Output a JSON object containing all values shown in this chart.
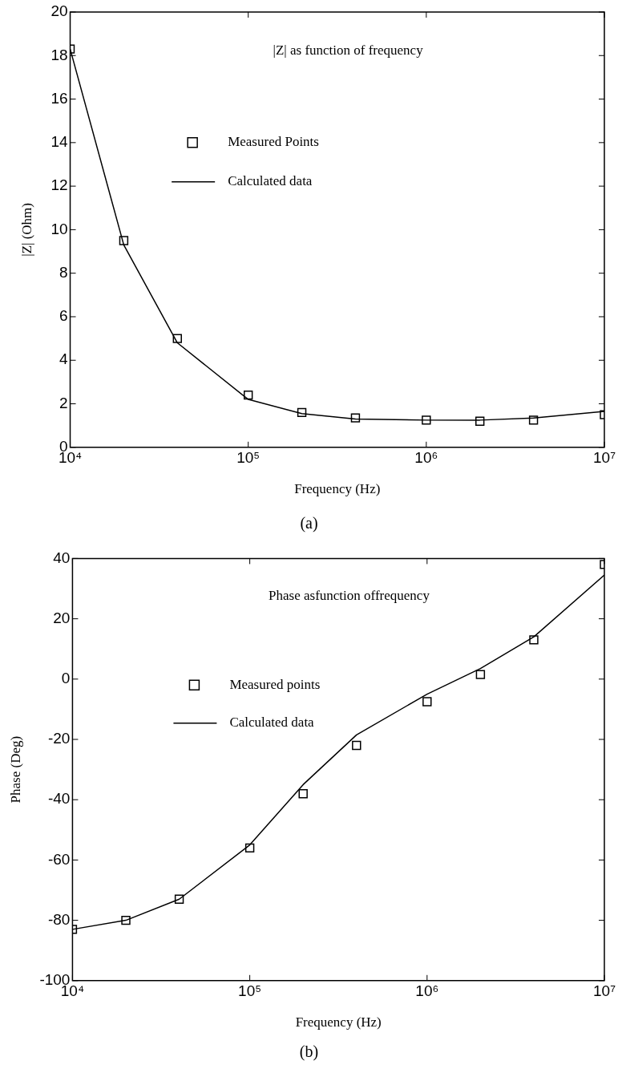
{
  "chart_data": [
    {
      "type": "line",
      "title": "|Z| as function of frequency",
      "xlabel": "Frequency (Hz)",
      "ylabel": "|Z| (Ohm)",
      "annotations": [
        "(a)"
      ],
      "x": [
        10000,
        20000,
        40000,
        100000,
        200000,
        400000,
        1000000,
        2000000,
        4000000,
        10000000
      ],
      "series": [
        {
          "name": "Measured Points",
          "type": "scatter",
          "marker": "square",
          "color": "#000000",
          "values": [
            18.3,
            9.5,
            5.0,
            2.4,
            1.6,
            1.35,
            1.25,
            1.2,
            1.25,
            1.5
          ]
        },
        {
          "name": "Calculated data",
          "marker": "none",
          "color": "#000000",
          "values": [
            18.3,
            9.3,
            4.8,
            2.2,
            1.55,
            1.3,
            1.25,
            1.25,
            1.35,
            1.65
          ]
        }
      ],
      "log": "x",
      "xlim": [
        10000,
        10000000
      ],
      "xticks": [
        {
          "value": 10000,
          "label": "10⁴"
        },
        {
          "value": 100000,
          "label": "10⁵"
        },
        {
          "value": 1000000,
          "label": "10⁶"
        },
        {
          "value": 10000000,
          "label": "10⁷"
        }
      ],
      "ylim": [
        0,
        20
      ],
      "yticks": [
        0,
        2,
        4,
        6,
        8,
        10,
        12,
        14,
        16,
        18,
        20
      ],
      "grid": false,
      "legend": "top left"
    },
    {
      "type": "line",
      "title": "Phase asfunction offrequency",
      "xlabel": "Frequency (Hz)",
      "ylabel": "Phase (Deg)",
      "annotations": [
        "(b)"
      ],
      "x": [
        10000,
        20000,
        40000,
        100000,
        200000,
        400000,
        1000000,
        2000000,
        4000000,
        10000000
      ],
      "series": [
        {
          "name": "Measured points",
          "type": "scatter",
          "marker": "square",
          "color": "#000000",
          "values": [
            -83,
            -80,
            -73,
            -56,
            -38,
            -22,
            -7.5,
            1.5,
            13,
            38
          ]
        },
        {
          "name": "Calculated data",
          "marker": "none",
          "color": "#000000",
          "values": [
            -83,
            -80,
            -73,
            -55,
            -35,
            -18.5,
            -5,
            3.5,
            14,
            34.5
          ]
        }
      ],
      "log": "x",
      "xlim": [
        10000,
        10000000
      ],
      "xticks": [
        {
          "value": 10000,
          "label": "10⁴"
        },
        {
          "value": 100000,
          "label": "10⁵"
        },
        {
          "value": 1000000,
          "label": "10⁶"
        },
        {
          "value": 10000000,
          "label": "10⁷"
        }
      ],
      "ylim": [
        -100,
        40
      ],
      "yticks": [
        -100,
        -80,
        -60,
        -40,
        -20,
        0,
        20,
        40
      ],
      "grid": false,
      "legend": "top left"
    }
  ]
}
